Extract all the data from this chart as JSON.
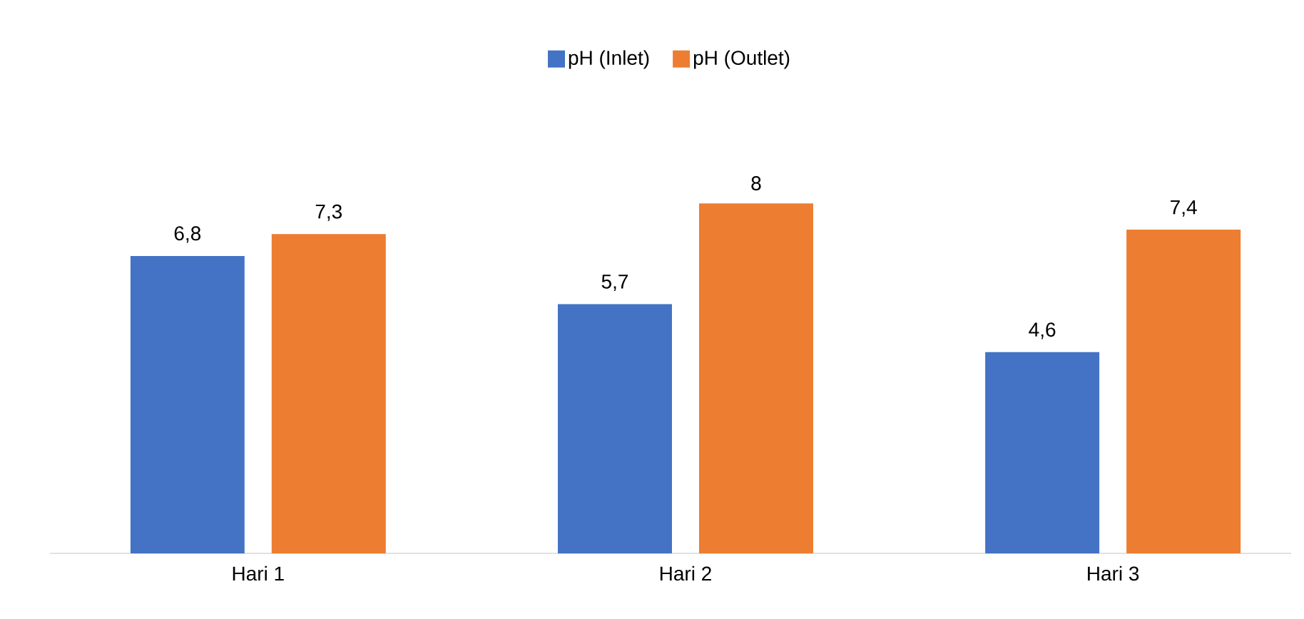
{
  "chart_data": {
    "type": "bar",
    "categories": [
      "Hari 1",
      "Hari 2",
      "Hari 3"
    ],
    "series": [
      {
        "name": "pH (Inlet)",
        "color": "#4472c4",
        "values": [
          6.8,
          5.7,
          4.6
        ],
        "value_labels": [
          "6,8",
          "5,7",
          "4,6"
        ]
      },
      {
        "name": "pH (Outlet)",
        "color": "#ed7d31",
        "values": [
          7.3,
          8,
          7.4
        ],
        "value_labels": [
          "7,3",
          "8",
          "7,4"
        ]
      }
    ],
    "legend": "top"
  }
}
